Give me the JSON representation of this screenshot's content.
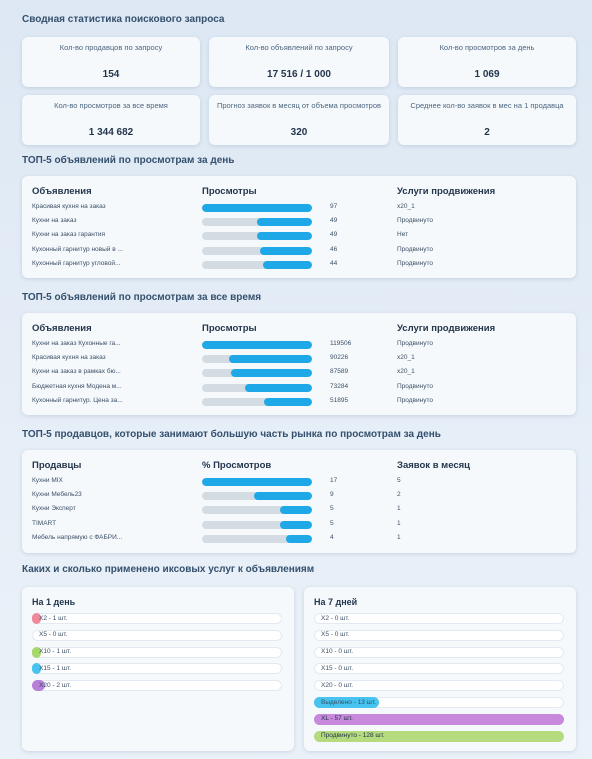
{
  "summary": {
    "title": "Сводная статистика поискового запроса",
    "cards": [
      {
        "label": "Кол-во продавцов по запросу",
        "value": "154"
      },
      {
        "label": "Кол-во объявлений по запросу",
        "value": "17 516 / 1 000"
      },
      {
        "label": "Кол-во просмотров за день",
        "value": "1 069"
      },
      {
        "label": "Кол-во просмотров за все время",
        "value": "1 344 682"
      },
      {
        "label": "Прогноз заявок в месяц от объема просмотров",
        "value": "320"
      },
      {
        "label": "Среднее кол-во заявок в мес на 1 продавца",
        "value": "2"
      }
    ]
  },
  "top_day": {
    "title": "ТОП-5 объявлений по просмотрам за день",
    "headers": [
      "Объявления",
      "Просмотры",
      "Услуги продвижения"
    ],
    "rows": [
      {
        "name": "Красивая кухня на заказ",
        "value": "97",
        "fill": 1.0,
        "service": "x20_1"
      },
      {
        "name": "Кухни на заказ",
        "value": "49",
        "fill": 0.5,
        "service": "Продвинуто"
      },
      {
        "name": "Кухни на заказ гарантия",
        "value": "49",
        "fill": 0.5,
        "service": "Нет"
      },
      {
        "name": "Кухонный гарнитур новый в ...",
        "value": "46",
        "fill": 0.47,
        "service": "Продвинуто"
      },
      {
        "name": "Кухонный гарнитур угловой...",
        "value": "44",
        "fill": 0.45,
        "service": "Продвинуто"
      }
    ]
  },
  "top_all": {
    "title": "ТОП-5 объявлений по просмотрам за все время",
    "headers": [
      "Объявления",
      "Просмотры",
      "Услуги продвижения"
    ],
    "rows": [
      {
        "name": "Кухни на заказ Кухонные га...",
        "value": "119506",
        "fill": 1.0,
        "service": "Продвинуто"
      },
      {
        "name": "Красивая кухня на заказ",
        "value": "90226",
        "fill": 0.755,
        "service": "x20_1"
      },
      {
        "name": "Кухни на заказ в рамках бю...",
        "value": "87589",
        "fill": 0.733,
        "service": "x20_1"
      },
      {
        "name": "Бюджетная кухня Модена м...",
        "value": "73284",
        "fill": 0.613,
        "service": "Продвинуто"
      },
      {
        "name": "Кухонный гарнитур. Цена за...",
        "value": "51895",
        "fill": 0.434,
        "service": "Продвинуто"
      }
    ]
  },
  "top_sellers": {
    "title": "ТОП-5 продавцов, которые занимают большую часть рынка по просмотрам за день",
    "headers": [
      "Продавцы",
      "% Просмотров",
      "Заявок в месяц"
    ],
    "rows": [
      {
        "name": "Кухни МIX",
        "value": "17",
        "fill": 1.0,
        "service": "5"
      },
      {
        "name": "Кухни Мебель23",
        "value": "9",
        "fill": 0.53,
        "service": "2"
      },
      {
        "name": "Кухни Эксперт",
        "value": "5",
        "fill": 0.29,
        "service": "1"
      },
      {
        "name": "TIMART",
        "value": "5",
        "fill": 0.29,
        "service": "1"
      },
      {
        "name": "Мебель напрямую с ФАБРИ...",
        "value": "4",
        "fill": 0.24,
        "service": "1"
      }
    ]
  },
  "services": {
    "title": "Каких и сколько применено иксовых услуг к объявлениям",
    "day": {
      "title": "На 1 день",
      "items": [
        {
          "text": "X2 - 1 шт.",
          "fill": 0.025,
          "color": "#f08a9a"
        },
        {
          "text": "X5 - 0 шт.",
          "fill": 0,
          "color": "#cccccc"
        },
        {
          "text": "X10 - 1 шт.",
          "fill": 0.025,
          "color": "#a6d86b"
        },
        {
          "text": "X15 - 1 шт.",
          "fill": 0.025,
          "color": "#46c3ee"
        },
        {
          "text": "X20 - 2 шт.",
          "fill": 0.05,
          "color": "#b77fd8"
        }
      ]
    },
    "week": {
      "title": "На 7 дней",
      "items": [
        {
          "text": "X2 - 0 шт.",
          "fill": 0,
          "color": "#cccccc"
        },
        {
          "text": "X5 - 0 шт.",
          "fill": 0,
          "color": "#cccccc"
        },
        {
          "text": "X10 - 0 шт.",
          "fill": 0,
          "color": "#cccccc"
        },
        {
          "text": "X15 - 0 шт.",
          "fill": 0,
          "color": "#cccccc"
        },
        {
          "text": "X20 - 0 шт.",
          "fill": 0,
          "color": "#cccccc"
        },
        {
          "text": "Выделено - 13 шт.",
          "fill": 0.26,
          "color": "#46c3ee"
        },
        {
          "text": "XL - 57 шт.",
          "fill": 1.0,
          "color": "#c888dc"
        },
        {
          "text": "Продвинуто - 128 шт.",
          "fill": 1.0,
          "color": "#b6da7e"
        }
      ]
    }
  }
}
